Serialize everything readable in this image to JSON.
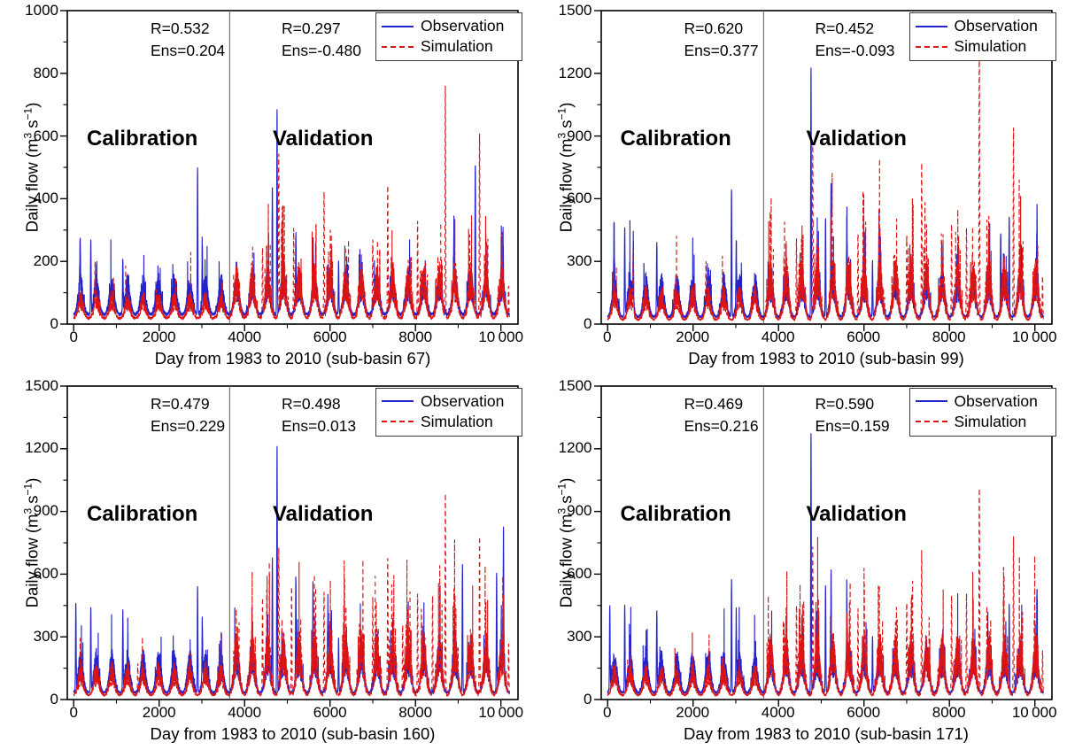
{
  "figure": {
    "layout": "2x2",
    "description": "Observed vs simulated daily flow hydrographs with calibration and validation periods"
  },
  "colors": {
    "observation": "#2323cc",
    "simulation": "#dd1414",
    "divider": "#5a5a5a",
    "axis": "#000000",
    "background": "#ffffff",
    "legend_border": "#3c3c3c"
  },
  "ylabel_parts": {
    "pre": "Daily flow (m",
    "sup1": "3",
    "mid": " s",
    "sup2": "−1",
    "post": ")"
  },
  "chart_data": [
    {
      "type": "line",
      "xlabel": "Day from 1983 to 2010 (sub-basin 67)",
      "ylabel": "Daily flow (m3 s-1)",
      "xlim": [
        -150,
        10400
      ],
      "ylim": [
        0,
        1000
      ],
      "x_range_days": [
        0,
        10200
      ],
      "xticks": [
        0,
        2000,
        4000,
        6000,
        8000,
        10000
      ],
      "xtick_labels": [
        "0",
        "2000",
        "4000",
        "6000",
        "8000",
        "10 000"
      ],
      "yticks": [
        0,
        200,
        400,
        600,
        800,
        1000
      ],
      "ytick_labels": [
        "0",
        "200",
        "400",
        "600",
        "800",
        "1000"
      ],
      "minor_x_step": 1000,
      "minor_y_step": 100,
      "grid": false,
      "legend_position": "top-right",
      "divider_x": 3650,
      "regions": [
        {
          "label": "Calibration",
          "r_text": "R=0.532",
          "ens_text": "Ens=0.204",
          "R": 0.532,
          "Ens": 0.204
        },
        {
          "label": "Validation",
          "r_text": "R=0.297",
          "ens_text": "Ens=-0.480",
          "R": 0.297,
          "Ens": -0.48
        }
      ],
      "series": [
        {
          "name": "Observation",
          "color": "#2323cc",
          "style": "solid",
          "seed": 101,
          "lo": 26,
          "hi": 150,
          "calib_gain": 1.0,
          "valid_gain": 1.15,
          "spike_p_calib": 0.05,
          "spike_p_valid": 0.06,
          "spike_mag": 0.9,
          "peaks": [
            [
              150,
              250
            ],
            [
              400,
              300
            ],
            [
              1150,
              230
            ],
            [
              2900,
              535
            ],
            [
              3010,
              250
            ],
            [
              4650,
              460
            ],
            [
              4760,
              720
            ],
            [
              5200,
              280
            ],
            [
              5600,
              250
            ],
            [
              6200,
              240
            ],
            [
              8900,
              280
            ],
            [
              9400,
              540
            ],
            [
              10050,
              240
            ]
          ]
        },
        {
          "name": "Simulation",
          "color": "#dd1414",
          "style": "dashed",
          "seed": 202,
          "lo": 14,
          "hi": 135,
          "calib_gain": 0.7,
          "valid_gain": 1.45,
          "spike_p_calib": 0.02,
          "spike_p_valid": 0.09,
          "spike_mag": 1.3,
          "peaks": [
            [
              500,
              200
            ],
            [
              4420,
              280
            ],
            [
              4800,
              570
            ],
            [
              5150,
              330
            ],
            [
              5860,
              470
            ],
            [
              7000,
              300
            ],
            [
              7350,
              480
            ],
            [
              8050,
              370
            ],
            [
              8700,
              810
            ],
            [
              9500,
              650
            ],
            [
              10180,
              170
            ]
          ]
        }
      ]
    },
    {
      "type": "line",
      "xlabel": "Day from 1983 to 2010 (sub-basin 99)",
      "ylabel": "Daily flow (m3 s-1)",
      "xlim": [
        -150,
        10400
      ],
      "ylim": [
        0,
        1500
      ],
      "x_range_days": [
        0,
        10200
      ],
      "xticks": [
        0,
        2000,
        4000,
        6000,
        8000,
        10000
      ],
      "xtick_labels": [
        "0",
        "2000",
        "4000",
        "6000",
        "8000",
        "10 000"
      ],
      "yticks": [
        0,
        300,
        600,
        900,
        1200,
        1500
      ],
      "ytick_labels": [
        "0",
        "300",
        "600",
        "900",
        "1200",
        "1500"
      ],
      "minor_x_step": 1000,
      "minor_y_step": 150,
      "grid": false,
      "legend_position": "top-right",
      "divider_x": 3650,
      "regions": [
        {
          "label": "Calibration",
          "r_text": "R=0.620",
          "ens_text": "Ens=0.377",
          "R": 0.62,
          "Ens": 0.377
        },
        {
          "label": "Validation",
          "r_text": "R=0.452",
          "ens_text": "Ens=-0.093",
          "R": 0.452,
          "Ens": -0.093
        }
      ],
      "series": [
        {
          "name": "Observation",
          "color": "#2323cc",
          "style": "solid",
          "seed": 103,
          "lo": 30,
          "hi": 235,
          "calib_gain": 1.0,
          "valid_gain": 1.15,
          "spike_p_calib": 0.05,
          "spike_p_valid": 0.06,
          "spike_mag": 0.9,
          "peaks": [
            [
              150,
              390
            ],
            [
              400,
              490
            ],
            [
              600,
              330
            ],
            [
              1150,
              400
            ],
            [
              2900,
              680
            ],
            [
              3010,
              380
            ],
            [
              4760,
              1250
            ],
            [
              5100,
              540
            ],
            [
              5230,
              590
            ],
            [
              5600,
              420
            ],
            [
              6200,
              340
            ],
            [
              6350,
              290
            ],
            [
              9200,
              440
            ],
            [
              9400,
              530
            ],
            [
              10050,
              430
            ]
          ]
        },
        {
          "name": "Simulation",
          "color": "#dd1414",
          "style": "dashed",
          "seed": 204,
          "lo": 16,
          "hi": 215,
          "calib_gain": 0.8,
          "valid_gain": 1.5,
          "spike_p_calib": 0.02,
          "spike_p_valid": 0.09,
          "spike_mag": 1.3,
          "peaks": [
            [
              600,
              330
            ],
            [
              2300,
              260
            ],
            [
              4420,
              440
            ],
            [
              4800,
              880
            ],
            [
              5250,
              490
            ],
            [
              5860,
              470
            ],
            [
              7000,
              410
            ],
            [
              7350,
              790
            ],
            [
              8050,
              520
            ],
            [
              8400,
              500
            ],
            [
              8700,
              1380
            ],
            [
              9500,
              980
            ],
            [
              10180,
              270
            ]
          ]
        }
      ]
    },
    {
      "type": "line",
      "xlabel": "Day from 1983 to 2010 (sub-basin 160)",
      "ylabel": "Daily flow (m3 s-1)",
      "xlim": [
        -150,
        10400
      ],
      "ylim": [
        0,
        1500
      ],
      "x_range_days": [
        0,
        10200
      ],
      "xticks": [
        0,
        2000,
        4000,
        6000,
        8000,
        10000
      ],
      "xtick_labels": [
        "0",
        "2000",
        "4000",
        "6000",
        "8000",
        "10 000"
      ],
      "yticks": [
        0,
        300,
        600,
        900,
        1200,
        1500
      ],
      "ytick_labels": [
        "0",
        "300",
        "600",
        "900",
        "1200",
        "1500"
      ],
      "minor_x_step": 1000,
      "minor_y_step": 150,
      "grid": false,
      "legend_position": "top-right",
      "divider_x": 3650,
      "regions": [
        {
          "label": "Calibration",
          "r_text": "R=0.479",
          "ens_text": "Ens=0.229",
          "R": 0.479,
          "Ens": 0.229
        },
        {
          "label": "Validation",
          "r_text": "R=0.498",
          "ens_text": "Ens=0.013",
          "R": 0.498,
          "Ens": 0.013
        }
      ],
      "series": [
        {
          "name": "Observation",
          "color": "#2323cc",
          "style": "solid",
          "seed": 105,
          "lo": 28,
          "hi": 240,
          "calib_gain": 0.95,
          "valid_gain": 1.2,
          "spike_p_calib": 0.05,
          "spike_p_valid": 0.06,
          "spike_mag": 0.9,
          "peaks": [
            [
              50,
              480
            ],
            [
              400,
              470
            ],
            [
              1150,
              430
            ],
            [
              2900,
              580
            ],
            [
              3010,
              360
            ],
            [
              4650,
              680
            ],
            [
              4760,
              1240
            ],
            [
              5200,
              545
            ],
            [
              5600,
              400
            ],
            [
              5950,
              365
            ],
            [
              6200,
              330
            ],
            [
              9100,
              680
            ],
            [
              9900,
              620
            ],
            [
              10060,
              700
            ]
          ]
        },
        {
          "name": "Simulation",
          "color": "#dd1414",
          "style": "dashed",
          "seed": 206,
          "lo": 16,
          "hi": 220,
          "calib_gain": 0.75,
          "valid_gain": 1.5,
          "spike_p_calib": 0.02,
          "spike_p_valid": 0.09,
          "spike_mag": 1.3,
          "peaks": [
            [
              1500,
              210
            ],
            [
              4420,
              480
            ],
            [
              4800,
              730
            ],
            [
              5100,
              590
            ],
            [
              5860,
              550
            ],
            [
              7000,
              470
            ],
            [
              7350,
              700
            ],
            [
              7700,
              390
            ],
            [
              8050,
              550
            ],
            [
              8400,
              540
            ],
            [
              8700,
              1020
            ],
            [
              9500,
              820
            ],
            [
              10180,
              310
            ]
          ]
        }
      ]
    },
    {
      "type": "line",
      "xlabel": "Day from 1983 to 2010 (sub-basin 171)",
      "ylabel": "Daily flow (m3 s-1)",
      "xlim": [
        -150,
        10400
      ],
      "ylim": [
        0,
        1500
      ],
      "x_range_days": [
        0,
        10200
      ],
      "xticks": [
        0,
        2000,
        4000,
        6000,
        8000,
        10000
      ],
      "xtick_labels": [
        "0",
        "2000",
        "4000",
        "6000",
        "8000",
        "10 000"
      ],
      "yticks": [
        0,
        300,
        600,
        900,
        1200,
        1500
      ],
      "ytick_labels": [
        "0",
        "300",
        "600",
        "900",
        "1200",
        "1500"
      ],
      "minor_x_step": 1000,
      "minor_y_step": 150,
      "grid": false,
      "legend_position": "top-right",
      "divider_x": 3650,
      "regions": [
        {
          "label": "Calibration",
          "r_text": "R=0.469",
          "ens_text": "Ens=0.216",
          "R": 0.469,
          "Ens": 0.216
        },
        {
          "label": "Validation",
          "r_text": "R=0.590",
          "ens_text": "Ens=0.159",
          "R": 0.59,
          "Ens": 0.159
        }
      ],
      "series": [
        {
          "name": "Observation",
          "color": "#2323cc",
          "style": "solid",
          "seed": 107,
          "lo": 28,
          "hi": 235,
          "calib_gain": 0.95,
          "valid_gain": 1.2,
          "spike_p_calib": 0.05,
          "spike_p_valid": 0.06,
          "spike_mag": 0.9,
          "peaks": [
            [
              50,
              470
            ],
            [
              400,
              480
            ],
            [
              1150,
              440
            ],
            [
              2900,
              610
            ],
            [
              3010,
              390
            ],
            [
              4760,
              1300
            ],
            [
              5100,
              580
            ],
            [
              5230,
              510
            ],
            [
              5600,
              390
            ],
            [
              6200,
              340
            ],
            [
              9400,
              460
            ],
            [
              10050,
              400
            ]
          ]
        },
        {
          "name": "Simulation",
          "color": "#dd1414",
          "style": "dashed",
          "seed": 208,
          "lo": 16,
          "hi": 215,
          "calib_gain": 0.75,
          "valid_gain": 1.5,
          "spike_p_calib": 0.02,
          "spike_p_valid": 0.09,
          "spike_mag": 1.3,
          "peaks": [
            [
              4420,
              480
            ],
            [
              4800,
              730
            ],
            [
              5860,
              470
            ],
            [
              7000,
              460
            ],
            [
              7350,
              710
            ],
            [
              8050,
              540
            ],
            [
              8400,
              545
            ],
            [
              8700,
              1050
            ],
            [
              9500,
              830
            ],
            [
              10180,
              280
            ]
          ]
        }
      ]
    }
  ]
}
